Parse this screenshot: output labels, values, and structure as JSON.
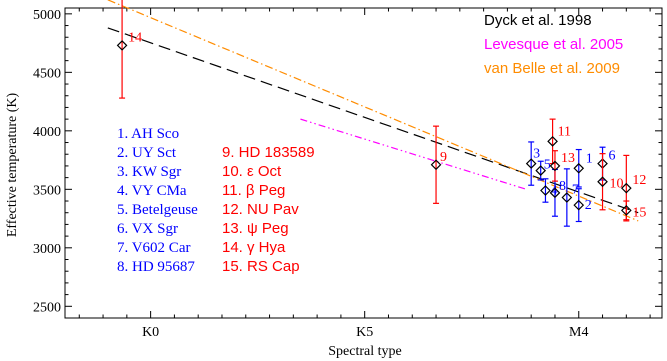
{
  "chart_data": {
    "type": "scatter",
    "title": "",
    "xlabel": "Spectral type",
    "ylabel": "Effective temperature (K)",
    "ylim": [
      2400,
      5050
    ],
    "x_categories": [
      "K0",
      "K5",
      "M4"
    ],
    "y_ticks": [
      2500,
      3000,
      3500,
      4000,
      4500,
      5000
    ],
    "lines": [
      {
        "name": "Dyck et al. 1998",
        "color": "#000000",
        "dash": "long",
        "points": [
          [
            -1.8,
            4880
          ],
          [
            20.5,
            3300
          ]
        ]
      },
      {
        "name": "Levesque et al. 2005",
        "color": "#ff00ff",
        "dash": "dashdotdot",
        "points": [
          [
            6.3,
            4100
          ],
          [
            15.8,
            3500
          ]
        ]
      },
      {
        "name": "van Belle et al. 2009",
        "color": "#ff8c00",
        "dash": "dashdot",
        "points": [
          [
            -1.8,
            5120
          ],
          [
            20.5,
            3230
          ]
        ]
      }
    ],
    "points": [
      {
        "id": "1",
        "x": 18.0,
        "y": 3680,
        "err": 160,
        "color": "#0000ff"
      },
      {
        "id": "2",
        "x": 18.0,
        "y": 3365,
        "err": 140,
        "color": "#0000ff"
      },
      {
        "id": "3",
        "x": 16.0,
        "y": 3720,
        "err": 185,
        "color": "#0000ff"
      },
      {
        "id": "4",
        "x": 16.6,
        "y": 3490,
        "err": 100,
        "color": "#0000ff"
      },
      {
        "id": "5",
        "x": 16.4,
        "y": 3660,
        "err": 80,
        "color": "#0000ff"
      },
      {
        "id": "6",
        "x": 19.0,
        "y": 3720,
        "err": 140,
        "color": "#0000ff"
      },
      {
        "id": "7",
        "x": 17.5,
        "y": 3430,
        "err": 245,
        "color": "#0000ff"
      },
      {
        "id": "8",
        "x": 17.0,
        "y": 3470,
        "err": 200,
        "color": "#0000ff"
      },
      {
        "id": "9",
        "x": 12.0,
        "y": 3710,
        "err": 330,
        "color": "#ff0000"
      },
      {
        "id": "10",
        "x": 19.0,
        "y": 3565,
        "err": 240,
        "color": "#ff0000"
      },
      {
        "id": "11",
        "x": 16.9,
        "y": 3910,
        "err": 190,
        "color": "#ff0000"
      },
      {
        "id": "12",
        "x": 20.0,
        "y": 3510,
        "err": 280,
        "color": "#ff0000"
      },
      {
        "id": "13",
        "x": 17.0,
        "y": 3700,
        "err": 130,
        "color": "#ff0000"
      },
      {
        "id": "14",
        "x": -1.2,
        "y": 4730,
        "err": 450,
        "color": "#ff0000"
      },
      {
        "id": "15",
        "x": 20.0,
        "y": 3320,
        "err": 80,
        "color": "#ff0000"
      }
    ],
    "legend": [
      {
        "label": "Dyck et al. 1998",
        "color": "#000000"
      },
      {
        "label": "Levesque et al. 2005",
        "color": "#ff00ff"
      },
      {
        "label": "van Belle et al. 2009",
        "color": "#ff8c00"
      }
    ],
    "legend_position": "top-right",
    "star_list_blue": [
      "1. AH Sco",
      "2. UY Sct",
      "3. KW Sgr",
      "4. VY CMa",
      "5. Betelgeuse",
      "6. VX Sgr",
      "7. V602 Car",
      "8. HD 95687"
    ],
    "star_list_red": [
      "9. HD 183589",
      "10. ε Oct",
      "11. β Peg",
      "12. NU Pav",
      "13. ψ Peg",
      "14. γ Hya",
      "15. RS Cap"
    ],
    "colors": {
      "blue": "#0000ff",
      "red": "#ff0000",
      "axis": "#000000"
    }
  }
}
